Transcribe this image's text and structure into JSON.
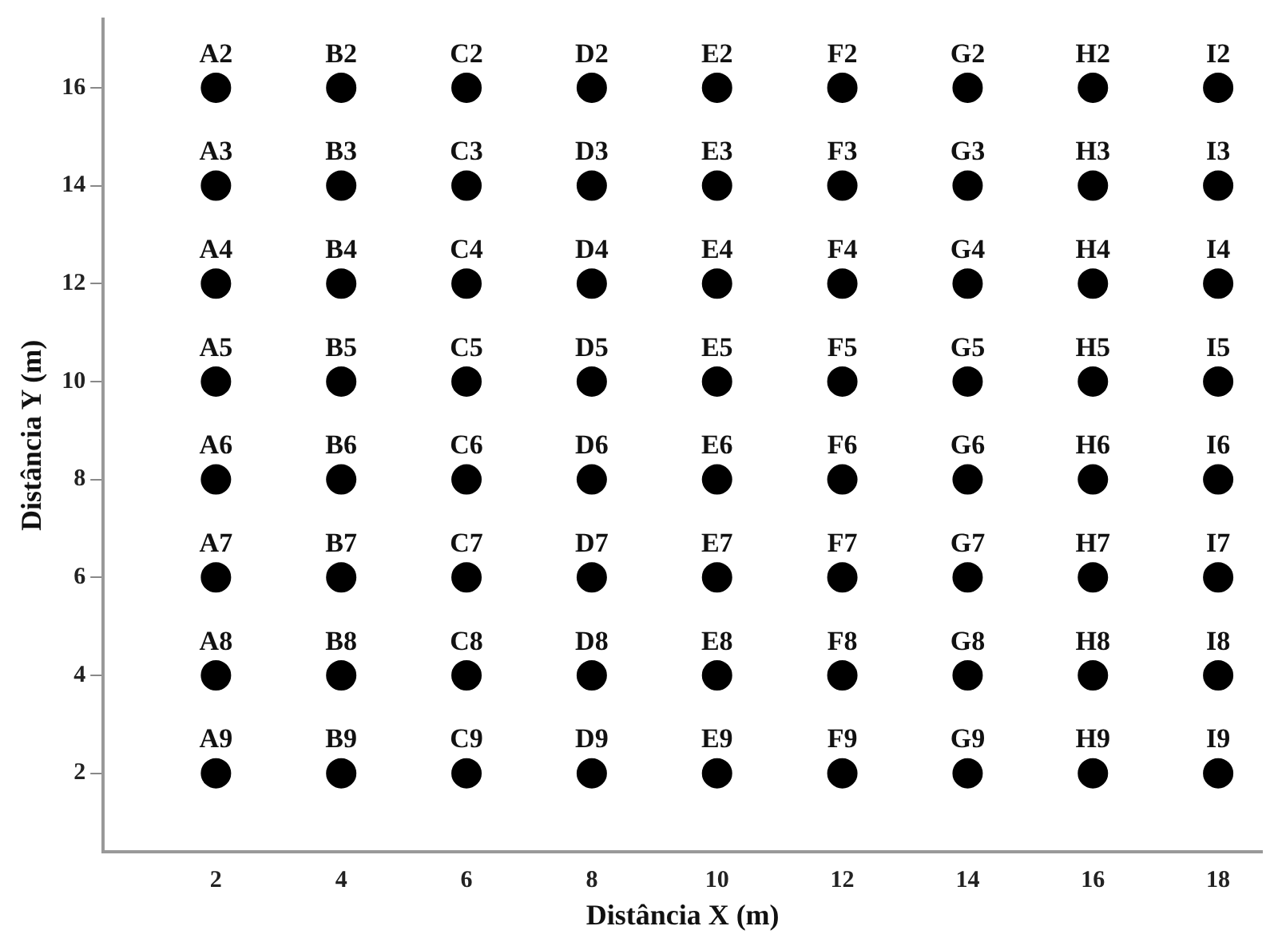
{
  "chart_data": {
    "type": "scatter",
    "xlabel": "Distância X (m)",
    "ylabel": "Distância Y (m)",
    "xlim": [
      0.2,
      18.7
    ],
    "ylim": [
      0.4,
      17.4
    ],
    "xticks": [
      2,
      4,
      6,
      8,
      10,
      12,
      14,
      16,
      18
    ],
    "yticks": [
      2,
      4,
      6,
      8,
      10,
      12,
      14,
      16
    ],
    "grid": false,
    "legend": false,
    "marker": "circle",
    "series": [
      {
        "color": "#000000",
        "x": [
          2,
          4,
          6,
          8,
          10,
          12,
          14,
          16,
          18,
          2,
          4,
          6,
          8,
          10,
          12,
          14,
          16,
          18,
          2,
          4,
          6,
          8,
          10,
          12,
          14,
          16,
          18,
          2,
          4,
          6,
          8,
          10,
          12,
          14,
          16,
          18,
          2,
          4,
          6,
          8,
          10,
          12,
          14,
          16,
          18,
          2,
          4,
          6,
          8,
          10,
          12,
          14,
          16,
          18,
          2,
          4,
          6,
          8,
          10,
          12,
          14,
          16,
          18,
          2,
          4,
          6,
          8,
          10,
          12,
          14,
          16,
          18
        ],
        "values": [
          16,
          16,
          16,
          16,
          16,
          16,
          16,
          16,
          16,
          14,
          14,
          14,
          14,
          14,
          14,
          14,
          14,
          14,
          12,
          12,
          12,
          12,
          12,
          12,
          12,
          12,
          12,
          10,
          10,
          10,
          10,
          10,
          10,
          10,
          10,
          10,
          8,
          8,
          8,
          8,
          8,
          8,
          8,
          8,
          8,
          6,
          6,
          6,
          6,
          6,
          6,
          6,
          6,
          6,
          4,
          4,
          4,
          4,
          4,
          4,
          4,
          4,
          4,
          2,
          2,
          2,
          2,
          2,
          2,
          2,
          2,
          2
        ],
        "value_labels": [
          "A2",
          "B2",
          "C2",
          "D2",
          "E2",
          "F2",
          "G2",
          "H2",
          "I2",
          "A3",
          "B3",
          "C3",
          "D3",
          "E3",
          "F3",
          "G3",
          "H3",
          "I3",
          "A4",
          "B4",
          "C4",
          "D4",
          "E4",
          "F4",
          "G4",
          "H4",
          "I4",
          "A5",
          "B5",
          "C5",
          "D5",
          "E5",
          "F5",
          "G5",
          "H5",
          "I5",
          "A6",
          "B6",
          "C6",
          "D6",
          "E6",
          "F6",
          "G6",
          "H6",
          "I6",
          "A7",
          "B7",
          "C7",
          "D7",
          "E7",
          "F7",
          "G7",
          "H7",
          "I7",
          "A8",
          "B8",
          "C8",
          "D8",
          "E8",
          "F8",
          "G8",
          "H8",
          "I8",
          "A9",
          "B9",
          "C9",
          "D9",
          "E9",
          "F9",
          "G9",
          "H9",
          "I9"
        ]
      }
    ]
  }
}
